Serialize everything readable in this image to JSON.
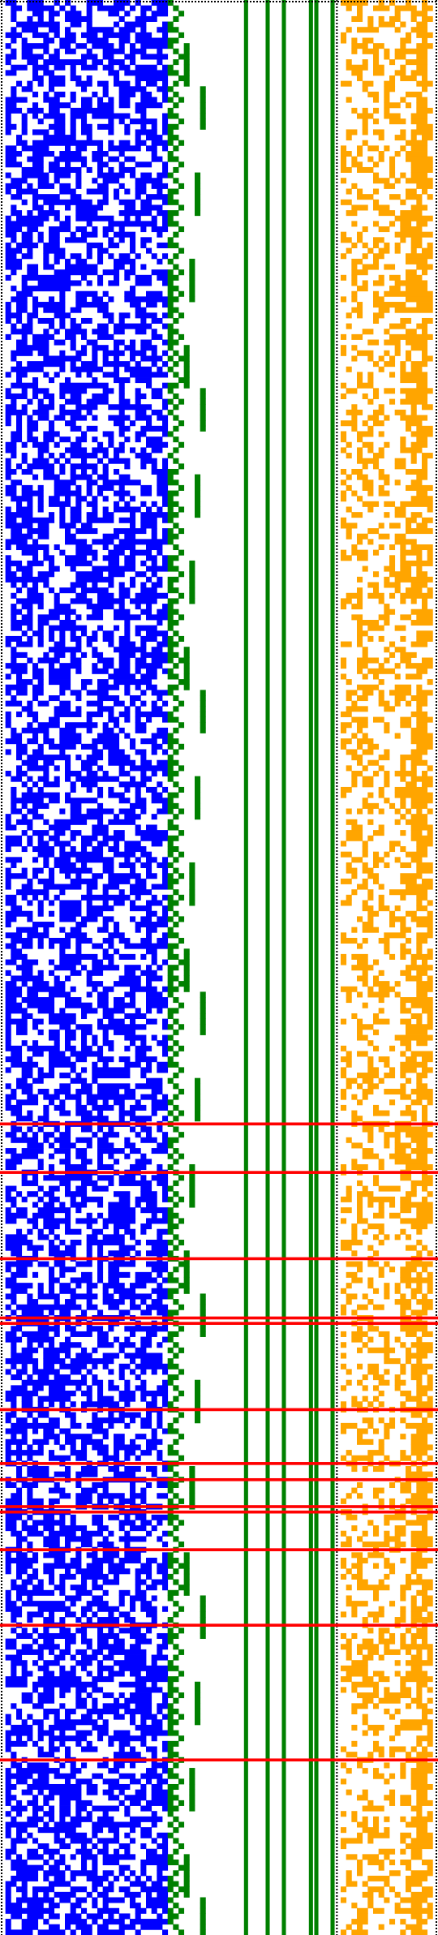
{
  "grid": {
    "rows": 359,
    "columns": 81,
    "seed": 20240519
  },
  "colors": {
    "background": "#ffffff",
    "frame": "#000000",
    "block_a": "#0000ff",
    "block_b": "#008000",
    "block_c": "#ffa500",
    "highlight": "#ff0000"
  },
  "blocks": [
    {
      "name": "block-a",
      "columns": [
        1,
        30
      ],
      "color_key": "block_a",
      "pattern": "random",
      "density": 0.58,
      "row_density": 0.58
    },
    {
      "name": "block-b-staircase",
      "columns": [
        31,
        37
      ],
      "color_key": "block_b",
      "pattern": "staircase"
    },
    {
      "name": "block-b-bars",
      "color_key": "block_b",
      "pattern": "solid-columns",
      "solid_columns": [
        45,
        49,
        52,
        57,
        58,
        61
      ]
    },
    {
      "name": "block-c",
      "columns": [
        63,
        79
      ],
      "color_key": "block_c",
      "pattern": "random",
      "density": 0.46,
      "column_density": [
        0.24,
        0.3,
        0.38,
        0.5,
        0.44,
        0.36,
        0.42,
        0.4,
        0.32,
        0.3,
        0.28,
        0.52,
        0.46,
        0.62,
        0.78,
        0.72,
        0.46
      ]
    }
  ],
  "dotted_borders": {
    "top": true,
    "left": true,
    "right": true,
    "separator_after_column": 61
  },
  "highlight_rows": [
    208,
    217,
    233,
    244,
    245,
    261,
    271,
    274,
    279,
    280,
    287,
    301,
    326
  ]
}
